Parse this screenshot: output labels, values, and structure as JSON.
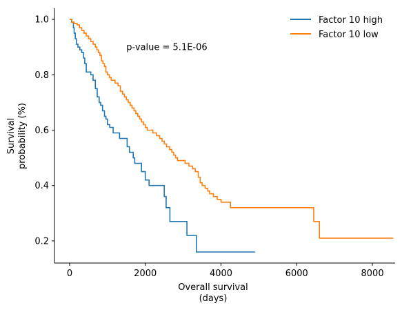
{
  "chart_data": {
    "type": "line",
    "subtype": "kaplan-meier-step",
    "xlabel_line1": "Overall survival",
    "xlabel_line2": "(days)",
    "ylabel_line1": "Survival",
    "ylabel_line2": "probability (%)",
    "xlim": [
      -400,
      8600
    ],
    "ylim": [
      0.12,
      1.04
    ],
    "xticks": [
      0,
      2000,
      4000,
      6000,
      8000
    ],
    "xtick_labels": [
      "0",
      "2000",
      "4000",
      "6000",
      "8000"
    ],
    "yticks": [
      0.2,
      0.4,
      0.6,
      0.8,
      1.0
    ],
    "ytick_labels": [
      "0.2",
      "0.4",
      "0.6",
      "0.8",
      "1.0"
    ],
    "grid": false,
    "legend_position": "top-right",
    "annotation": {
      "text": "p-value = 5.1E-06",
      "x": 1500,
      "y": 0.9
    },
    "series": [
      {
        "name": "Factor 10 high",
        "color": "#1f77b4",
        "points": [
          [
            0,
            1.0
          ],
          [
            50,
            0.99
          ],
          [
            100,
            0.97
          ],
          [
            120,
            0.95
          ],
          [
            150,
            0.93
          ],
          [
            180,
            0.91
          ],
          [
            220,
            0.9
          ],
          [
            270,
            0.89
          ],
          [
            320,
            0.88
          ],
          [
            370,
            0.86
          ],
          [
            400,
            0.84
          ],
          [
            440,
            0.81
          ],
          [
            560,
            0.8
          ],
          [
            620,
            0.78
          ],
          [
            680,
            0.75
          ],
          [
            730,
            0.72
          ],
          [
            780,
            0.7
          ],
          [
            820,
            0.69
          ],
          [
            870,
            0.67
          ],
          [
            920,
            0.65
          ],
          [
            960,
            0.64
          ],
          [
            1000,
            0.62
          ],
          [
            1060,
            0.61
          ],
          [
            1150,
            0.59
          ],
          [
            1320,
            0.57
          ],
          [
            1430,
            0.57
          ],
          [
            1520,
            0.54
          ],
          [
            1580,
            0.52
          ],
          [
            1680,
            0.5
          ],
          [
            1720,
            0.48
          ],
          [
            1900,
            0.45
          ],
          [
            2000,
            0.42
          ],
          [
            2100,
            0.4
          ],
          [
            2500,
            0.36
          ],
          [
            2550,
            0.32
          ],
          [
            2650,
            0.27
          ],
          [
            3100,
            0.22
          ],
          [
            3350,
            0.16
          ],
          [
            4900,
            0.16
          ]
        ]
      },
      {
        "name": "Factor 10 low",
        "color": "#ff7f0e",
        "points": [
          [
            0,
            1.0
          ],
          [
            60,
            0.99
          ],
          [
            120,
            0.985
          ],
          [
            200,
            0.98
          ],
          [
            260,
            0.97
          ],
          [
            320,
            0.96
          ],
          [
            380,
            0.95
          ],
          [
            440,
            0.94
          ],
          [
            500,
            0.93
          ],
          [
            560,
            0.92
          ],
          [
            620,
            0.91
          ],
          [
            680,
            0.9
          ],
          [
            720,
            0.89
          ],
          [
            760,
            0.88
          ],
          [
            800,
            0.87
          ],
          [
            840,
            0.85
          ],
          [
            880,
            0.84
          ],
          [
            920,
            0.83
          ],
          [
            960,
            0.81
          ],
          [
            1000,
            0.8
          ],
          [
            1050,
            0.79
          ],
          [
            1100,
            0.78
          ],
          [
            1200,
            0.77
          ],
          [
            1280,
            0.76
          ],
          [
            1340,
            0.74
          ],
          [
            1400,
            0.73
          ],
          [
            1450,
            0.72
          ],
          [
            1500,
            0.71
          ],
          [
            1550,
            0.7
          ],
          [
            1600,
            0.69
          ],
          [
            1650,
            0.68
          ],
          [
            1700,
            0.67
          ],
          [
            1750,
            0.66
          ],
          [
            1800,
            0.65
          ],
          [
            1850,
            0.64
          ],
          [
            1900,
            0.63
          ],
          [
            1950,
            0.62
          ],
          [
            2000,
            0.61
          ],
          [
            2050,
            0.6
          ],
          [
            2200,
            0.59
          ],
          [
            2300,
            0.58
          ],
          [
            2380,
            0.57
          ],
          [
            2440,
            0.56
          ],
          [
            2500,
            0.55
          ],
          [
            2560,
            0.54
          ],
          [
            2640,
            0.53
          ],
          [
            2700,
            0.52
          ],
          [
            2750,
            0.51
          ],
          [
            2800,
            0.5
          ],
          [
            2850,
            0.49
          ],
          [
            2950,
            0.49
          ],
          [
            3050,
            0.48
          ],
          [
            3150,
            0.47
          ],
          [
            3250,
            0.46
          ],
          [
            3320,
            0.45
          ],
          [
            3400,
            0.43
          ],
          [
            3450,
            0.41
          ],
          [
            3500,
            0.4
          ],
          [
            3580,
            0.39
          ],
          [
            3650,
            0.38
          ],
          [
            3700,
            0.37
          ],
          [
            3800,
            0.36
          ],
          [
            3900,
            0.35
          ],
          [
            4000,
            0.34
          ],
          [
            4250,
            0.32
          ],
          [
            6450,
            0.27
          ],
          [
            6600,
            0.21
          ],
          [
            8550,
            0.21
          ]
        ]
      }
    ]
  }
}
